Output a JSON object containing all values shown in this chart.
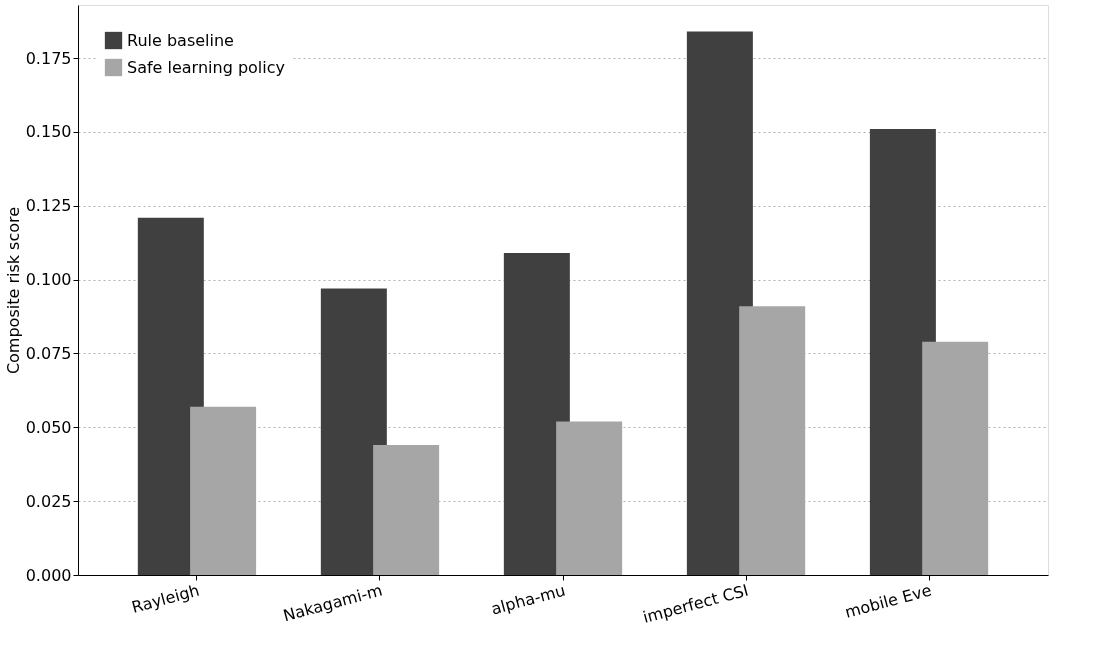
{
  "chart_data": {
    "type": "bar",
    "ylabel": "Composite risk score",
    "categories": [
      "Rayleigh",
      "Nakagami-m",
      "alpha-mu",
      "imperfect CSI",
      "mobile Eve"
    ],
    "series": [
      {
        "name": "Rule baseline",
        "color": "#404040",
        "values": [
          0.121,
          0.097,
          0.109,
          0.184,
          0.151
        ]
      },
      {
        "name": "Safe learning policy",
        "color": "#a6a6a6",
        "values": [
          0.057,
          0.044,
          0.052,
          0.091,
          0.079
        ]
      }
    ],
    "ylim": [
      0,
      0.193
    ],
    "yticks": [
      {
        "value": 0,
        "label": "0.000"
      },
      {
        "value": 0.025,
        "label": "0.025"
      },
      {
        "value": 0.05,
        "label": "0.050"
      },
      {
        "value": 0.075,
        "label": "0.075"
      },
      {
        "value": 0.1,
        "label": "0.100"
      },
      {
        "value": 0.125,
        "label": "0.125"
      },
      {
        "value": 0.15,
        "label": "0.150"
      },
      {
        "value": 0.175,
        "label": "0.175"
      }
    ],
    "grid": "y",
    "legend": "top left"
  }
}
